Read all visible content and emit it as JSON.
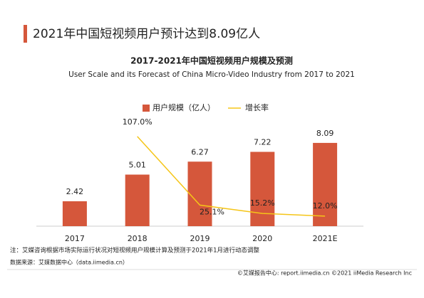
{
  "headline": "2021年中国短视频用户预计达到8.09亿人",
  "chart_data": {
    "type": "bar_line",
    "title": "2017-2021年中国短视频用户规模及预测",
    "subtitle": "User Scale and its Forecast of China Micro-Video Industry from 2017 to 2021",
    "categories": [
      "2017",
      "2018",
      "2019",
      "2020",
      "2021E"
    ],
    "series": [
      {
        "name": "用户规模（亿人）",
        "type": "bar",
        "color": "#d5573b",
        "values": [
          2.42,
          5.01,
          6.27,
          7.22,
          8.09
        ]
      },
      {
        "name": "增长率",
        "type": "line",
        "axis": "y2",
        "color": "#f5c518",
        "values": [
          null,
          107.0,
          25.1,
          15.2,
          12.0
        ],
        "value_labels": [
          null,
          "107.0%",
          "25.1%",
          "15.2%",
          "12.0%"
        ]
      }
    ],
    "ylim": [
      0,
      12.3
    ],
    "y2lim": [
      0,
      151
    ],
    "legend": "top"
  },
  "footnote": "注：艾媒咨询根据市场实际运行状况对短视频用户规模计算及预测于2021年1月进行动态调整",
  "source": "数据来源：艾媒数据中心（data.iimedia.cn）",
  "copyright": "©艾媒报告中心: report.iimedia.cn   ©2021  iiMedia Research  Inc"
}
